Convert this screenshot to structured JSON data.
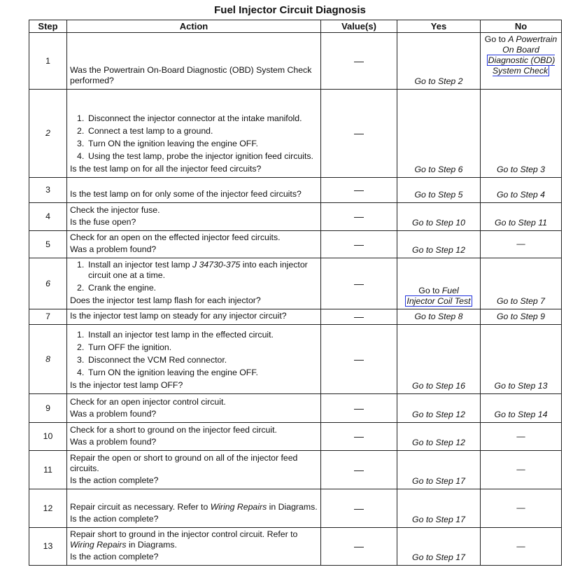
{
  "title": "Fuel Injector Circuit Diagnosis",
  "headers": [
    "Step",
    "Action",
    "Value(s)",
    "Yes",
    "No"
  ],
  "rows": [
    {
      "step": "1",
      "italic_step": false,
      "action": [
        {
          "type": "p",
          "segs": [
            {
              "text": "Was the Powertrain On-Board Diagnostic (OBD) System Check performed?"
            }
          ]
        }
      ],
      "value": "—",
      "yes": [
        {
          "text": "Go to Step 2"
        }
      ],
      "no": [
        {
          "text": "Go to ",
          "plain": true
        },
        {
          "text": "A Powertrain On Board"
        },
        {
          "text": "Diagnostic (OBD) System Check",
          "link": true
        }
      ]
    },
    {
      "step": "2",
      "italic_step": true,
      "action": [
        {
          "type": "li",
          "num": "1.",
          "segs": [
            {
              "text": "Disconnect the injector connector at the intake manifold."
            }
          ]
        },
        {
          "type": "li",
          "num": "2.",
          "segs": [
            {
              "text": "Connect a test lamp to a ground."
            }
          ]
        },
        {
          "type": "li",
          "num": "3.",
          "segs": [
            {
              "text": "Turn ON the ignition leaving the engine OFF."
            }
          ]
        },
        {
          "type": "li",
          "num": "4.",
          "segs": [
            {
              "text": "Using the test lamp, probe the injector ignition feed circuits."
            }
          ]
        },
        {
          "type": "p",
          "segs": [
            {
              "text": "Is the test lamp on for all the injector feed circuits?"
            }
          ]
        }
      ],
      "value": "—",
      "yes": [
        {
          "text": "Go to Step 6"
        }
      ],
      "no": [
        {
          "text": "Go to Step 3"
        }
      ]
    },
    {
      "step": "3",
      "italic_step": false,
      "action": [
        {
          "type": "p",
          "segs": [
            {
              "text": "Is the test lamp on for only some of the injector feed circuits?"
            }
          ]
        }
      ],
      "value": "—",
      "yes": [
        {
          "text": "Go to Step 5"
        }
      ],
      "no": [
        {
          "text": "Go to Step 4"
        }
      ]
    },
    {
      "step": "4",
      "italic_step": false,
      "action": [
        {
          "type": "p",
          "segs": [
            {
              "text": "Check the injector fuse."
            }
          ]
        },
        {
          "type": "p",
          "segs": [
            {
              "text": "Is the fuse open?"
            }
          ]
        }
      ],
      "value": "—",
      "yes": [
        {
          "text": "Go to Step 10"
        }
      ],
      "no": [
        {
          "text": "Go to Step 11"
        }
      ]
    },
    {
      "step": "5",
      "italic_step": false,
      "action": [
        {
          "type": "p",
          "segs": [
            {
              "text": "Check for an open on the effected injector feed circuits."
            }
          ]
        },
        {
          "type": "p",
          "segs": [
            {
              "text": "Was a problem found?"
            }
          ]
        }
      ],
      "value": "—",
      "yes": [
        {
          "text": "Go to Step 12"
        }
      ],
      "no": [
        {
          "text": "—",
          "plain": true
        }
      ]
    },
    {
      "step": "6",
      "italic_step": true,
      "action": [
        {
          "type": "li",
          "num": "1.",
          "segs": [
            {
              "text": "Install an injector test lamp "
            },
            {
              "text": "J 34730-375",
              "italic": true
            },
            {
              "text": " into each injector circuit one at a time."
            }
          ]
        },
        {
          "type": "li",
          "num": "2.",
          "segs": [
            {
              "text": "Crank the engine."
            }
          ]
        },
        {
          "type": "p",
          "segs": [
            {
              "text": "Does the injector test lamp flash for each injector?"
            }
          ]
        }
      ],
      "value": "—",
      "yes": [
        {
          "text": "Go to ",
          "plain": true
        },
        {
          "text": "Fuel"
        },
        {
          "text": "Injector Coil Test",
          "link": true
        }
      ],
      "no": [
        {
          "text": "Go to Step 7"
        }
      ]
    },
    {
      "step": "7",
      "italic_step": false,
      "action": [
        {
          "type": "p",
          "segs": [
            {
              "text": "Is the injector test lamp on steady for any injector circuit?"
            }
          ]
        }
      ],
      "value": "—",
      "yes": [
        {
          "text": "Go to Step 8"
        }
      ],
      "no": [
        {
          "text": "Go to Step 9"
        }
      ]
    },
    {
      "step": "8",
      "italic_step": true,
      "action": [
        {
          "type": "li",
          "num": "1.",
          "segs": [
            {
              "text": "Install an injector test lamp in the effected circuit."
            }
          ]
        },
        {
          "type": "li",
          "num": "2.",
          "segs": [
            {
              "text": "Turn OFF the ignition."
            }
          ]
        },
        {
          "type": "li",
          "num": "3.",
          "segs": [
            {
              "text": "Disconnect the VCM Red connector."
            }
          ]
        },
        {
          "type": "li",
          "num": "4.",
          "segs": [
            {
              "text": "Turn ON the ignition leaving the engine OFF."
            }
          ]
        },
        {
          "type": "p",
          "segs": [
            {
              "text": "Is the injector test lamp OFF?"
            }
          ]
        }
      ],
      "value": "—",
      "yes": [
        {
          "text": "Go to Step 16"
        }
      ],
      "no": [
        {
          "text": "Go to Step 13"
        }
      ]
    },
    {
      "step": "9",
      "italic_step": false,
      "action": [
        {
          "type": "p",
          "segs": [
            {
              "text": "Check for an open injector control circuit."
            }
          ]
        },
        {
          "type": "p",
          "segs": [
            {
              "text": "Was a problem found?"
            }
          ]
        }
      ],
      "value": "—",
      "yes": [
        {
          "text": "Go to Step 12"
        }
      ],
      "no": [
        {
          "text": "Go to Step 14"
        }
      ]
    },
    {
      "step": "10",
      "italic_step": false,
      "action": [
        {
          "type": "p",
          "segs": [
            {
              "text": "Check for a short to ground on the injector feed circuit."
            }
          ]
        },
        {
          "type": "p",
          "segs": [
            {
              "text": "Was a problem found?"
            }
          ]
        }
      ],
      "value": "—",
      "yes": [
        {
          "text": "Go to Step 12"
        }
      ],
      "no": [
        {
          "text": "—",
          "plain": true
        }
      ]
    },
    {
      "step": "11",
      "italic_step": false,
      "action": [
        {
          "type": "p",
          "segs": [
            {
              "text": "Repair the open or short to ground on all of the injector feed circuits."
            }
          ]
        },
        {
          "type": "p",
          "segs": [
            {
              "text": "Is the action complete?"
            }
          ]
        }
      ],
      "value": "—",
      "yes": [
        {
          "text": "Go to Step 17"
        }
      ],
      "no": [
        {
          "text": "—",
          "plain": true
        }
      ]
    },
    {
      "step": "12",
      "italic_step": false,
      "action": [
        {
          "type": "p",
          "segs": [
            {
              "text": "Repair circuit as necessary. Refer to "
            },
            {
              "text": "Wiring Repairs",
              "italic": true
            },
            {
              "text": " in Diagrams."
            }
          ]
        },
        {
          "type": "p",
          "segs": [
            {
              "text": "Is the action complete?"
            }
          ]
        }
      ],
      "value": "—",
      "yes": [
        {
          "text": "Go to Step 17"
        }
      ],
      "no": [
        {
          "text": "—",
          "plain": true
        }
      ]
    },
    {
      "step": "13",
      "italic_step": false,
      "action": [
        {
          "type": "p",
          "segs": [
            {
              "text": "Repair short to ground in the injector control circuit. Refer to "
            },
            {
              "text": "Wiring Repairs",
              "italic": true
            },
            {
              "text": " in Diagrams."
            }
          ]
        },
        {
          "type": "p",
          "segs": [
            {
              "text": "Is the action complete?"
            }
          ]
        }
      ],
      "value": "—",
      "yes": [
        {
          "text": "Go to Step 17"
        }
      ],
      "no": [
        {
          "text": "—",
          "plain": true
        }
      ]
    }
  ]
}
